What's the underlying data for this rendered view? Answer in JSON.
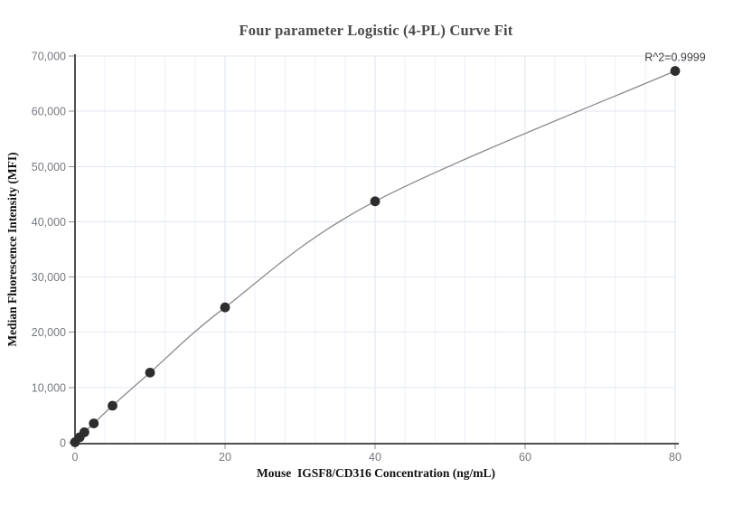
{
  "chart_data": {
    "type": "scatter",
    "title": "Four parameter Logistic (4-PL) Curve Fit",
    "xlabel": "Mouse  IGSF8/CD316 Concentration (ng/mL)",
    "ylabel": "Median Fluorescence Intensity (MFI)",
    "annotation": "R^2=0.9999",
    "x": [
      0,
      0.625,
      1.25,
      2.5,
      5,
      10,
      20,
      40,
      80
    ],
    "y": [
      100,
      1000,
      1900,
      3500,
      6700,
      12700,
      24500,
      43700,
      67300
    ],
    "series_name": "4-PL fit curve through standard points",
    "xlim": [
      0,
      80
    ],
    "ylim": [
      0,
      70000
    ],
    "x_ticks": [
      0,
      20,
      40,
      60,
      80
    ],
    "y_ticks": [
      0,
      10000,
      20000,
      30000,
      40000,
      50000,
      60000,
      70000
    ],
    "x_minor_grid_step": 4,
    "grid": true,
    "legend": "none",
    "colors": {
      "point": "#2d2d2d",
      "curve": "#8a8a8a",
      "axis": "#4f4f4f",
      "tick_mark": "#8f8f8f",
      "tick_label": "#75787f",
      "grid_minor_v": "#eef1f8",
      "grid_major_v": "#dce2f0",
      "grid_horizontal": "#e2e7f2",
      "title_color": "#4a4a4a",
      "axis_title_color": "#111111",
      "annotation_color": "#3f3f3f",
      "background": "#ffffff"
    }
  }
}
